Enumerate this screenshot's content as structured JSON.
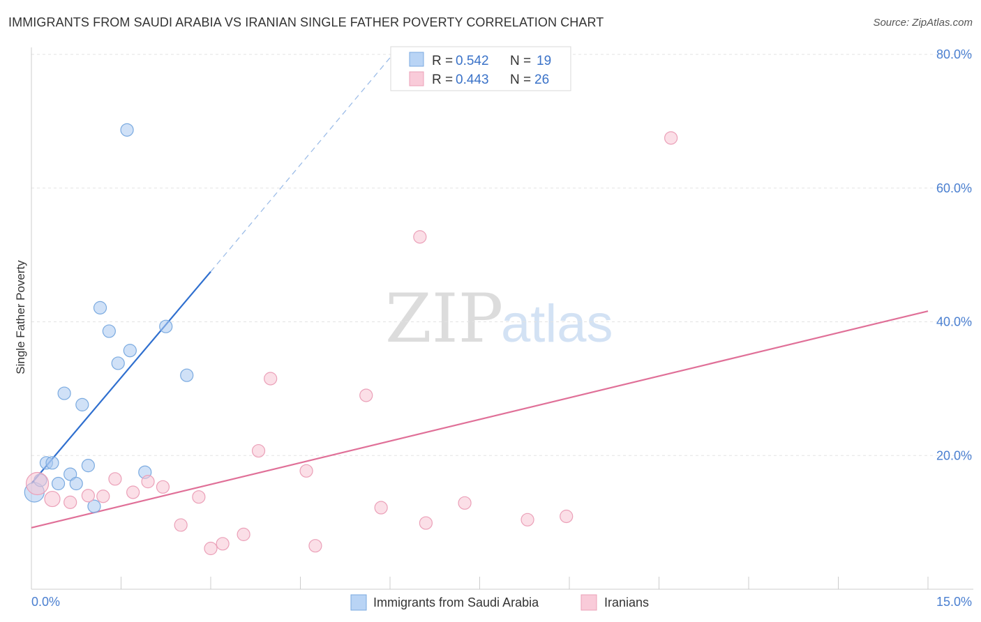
{
  "chart_data": {
    "type": "scatter",
    "title": "IMMIGRANTS FROM SAUDI ARABIA VS IRANIAN SINGLE FATHER POVERTY CORRELATION CHART",
    "source": "Source: ZipAtlas.com",
    "xlabel": "",
    "ylabel": "Single Father Poverty",
    "xlim": [
      0,
      15
    ],
    "ylim": [
      0,
      80
    ],
    "x_tick_labels": [
      "0.0%",
      "15.0%"
    ],
    "y_ticks": [
      20,
      40,
      60,
      80
    ],
    "y_tick_labels": [
      "20.0%",
      "40.0%",
      "60.0%",
      "80.0%"
    ],
    "grid": true,
    "watermark": {
      "zip": "ZIP",
      "atlas": "atlas"
    },
    "legend": {
      "r_label": "R =",
      "n_label": "N =",
      "entries": [
        {
          "r": "0.542",
          "n": "19"
        },
        {
          "r": "0.443",
          "n": "26"
        }
      ]
    },
    "series": [
      {
        "name": "Immigrants from Saudi Arabia",
        "color": "#a9c9f0",
        "stroke": "#7aaae0",
        "line_color": "#2f6fcf",
        "trend": {
          "x0": 0.0,
          "y0": 15.8,
          "x1": 3.0,
          "y1": 47.5,
          "dash_x1": 6.0,
          "dash_y1": 79.5
        },
        "points": [
          [
            0.05,
            14.5,
            14
          ],
          [
            0.15,
            16.3,
            9
          ],
          [
            0.25,
            18.9,
            9
          ],
          [
            0.35,
            18.9,
            9
          ],
          [
            0.45,
            15.8,
            9
          ],
          [
            0.55,
            29.3,
            9
          ],
          [
            0.65,
            17.2,
            9
          ],
          [
            0.75,
            15.8,
            9
          ],
          [
            0.85,
            27.6,
            9
          ],
          [
            0.95,
            18.5,
            9
          ],
          [
            1.05,
            12.4,
            9
          ],
          [
            1.15,
            42.1,
            9
          ],
          [
            1.3,
            38.6,
            9
          ],
          [
            1.45,
            33.8,
            9
          ],
          [
            1.6,
            68.7,
            9
          ],
          [
            1.65,
            35.7,
            9
          ],
          [
            1.9,
            17.5,
            9
          ],
          [
            2.25,
            39.3,
            9
          ],
          [
            2.6,
            32.0,
            9
          ]
        ]
      },
      {
        "name": "Iranians",
        "color": "#f7c4d4",
        "stroke": "#eba0b8",
        "line_color": "#e07098",
        "trend": {
          "x0": 0.0,
          "y0": 9.2,
          "x1": 15.0,
          "y1": 41.6
        },
        "points": [
          [
            0.1,
            15.8,
            16
          ],
          [
            0.35,
            13.5,
            11
          ],
          [
            0.65,
            13.0,
            9
          ],
          [
            0.95,
            14.0,
            9
          ],
          [
            1.2,
            13.9,
            9
          ],
          [
            1.4,
            16.5,
            9
          ],
          [
            1.7,
            14.5,
            9
          ],
          [
            1.95,
            16.1,
            9
          ],
          [
            2.2,
            15.3,
            9
          ],
          [
            2.5,
            9.6,
            9
          ],
          [
            2.8,
            13.8,
            9
          ],
          [
            3.0,
            6.1,
            9
          ],
          [
            3.2,
            6.8,
            9
          ],
          [
            3.55,
            8.2,
            9
          ],
          [
            3.8,
            20.7,
            9
          ],
          [
            4.0,
            31.5,
            9
          ],
          [
            4.6,
            17.7,
            9
          ],
          [
            4.75,
            6.5,
            9
          ],
          [
            5.6,
            29.0,
            9
          ],
          [
            5.85,
            12.2,
            9
          ],
          [
            6.5,
            52.7,
            9
          ],
          [
            6.6,
            9.9,
            9
          ],
          [
            7.25,
            12.9,
            9
          ],
          [
            8.3,
            10.4,
            9
          ],
          [
            8.95,
            10.9,
            9
          ],
          [
            10.7,
            67.5,
            9
          ]
        ]
      }
    ]
  }
}
